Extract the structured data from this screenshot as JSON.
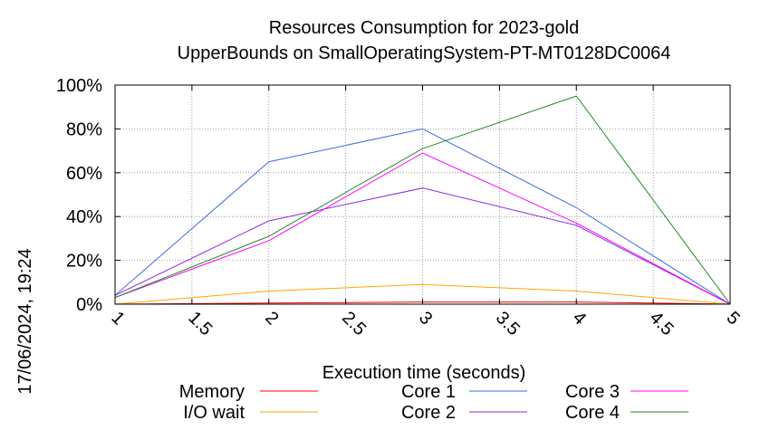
{
  "chart_data": {
    "type": "line",
    "title": "Resources Consumption for 2023-gold",
    "subtitle": "UpperBounds on SmallOperatingSystem-PT-MT0128DC0064",
    "xlabel": "Execution time (seconds)",
    "ylabel": "",
    "side_label": "17/06/2024, 19:24",
    "xlim": [
      1,
      5
    ],
    "ylim": [
      0,
      100
    ],
    "x_ticks": [
      "1",
      "1.5",
      "2",
      "2.5",
      "3",
      "3.5",
      "4",
      "4.5",
      "5"
    ],
    "y_ticks": [
      "0%",
      "20%",
      "40%",
      "60%",
      "80%",
      "100%"
    ],
    "grid": true,
    "legend_position": "bottom",
    "x": [
      1,
      2,
      3,
      4,
      5
    ],
    "series": [
      {
        "name": "Memory",
        "color": "#ff0000",
        "values": [
          0,
          0.5,
          1,
          1,
          0
        ]
      },
      {
        "name": "I/O wait",
        "color": "#ffa500",
        "values": [
          0,
          6,
          9,
          6,
          0
        ]
      },
      {
        "name": "Core 1",
        "color": "#4169e1",
        "values": [
          4,
          65,
          80,
          44,
          0
        ]
      },
      {
        "name": "Core 2",
        "color": "#8a2be2",
        "values": [
          4,
          38,
          53,
          36,
          0
        ]
      },
      {
        "name": "Core 3",
        "color": "#ff00ff",
        "values": [
          3,
          29,
          69,
          37,
          0
        ]
      },
      {
        "name": "Core 4",
        "color": "#228b22",
        "values": [
          3,
          31,
          71,
          95,
          0
        ]
      }
    ]
  }
}
